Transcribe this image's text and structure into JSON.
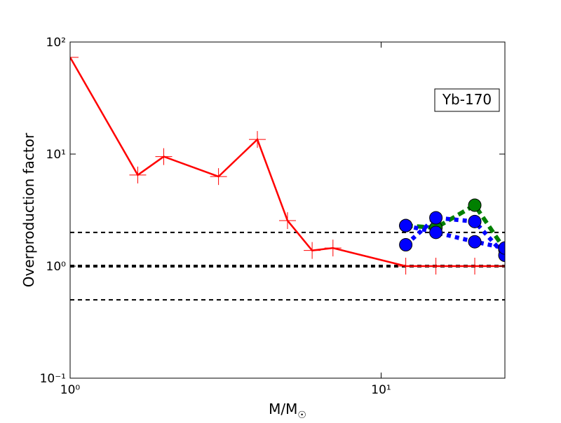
{
  "chart_data": {
    "type": "line",
    "xlabel": "M/M",
    "xlabel_sub": "☉",
    "ylabel": "Overproduction factor",
    "annotation": "Yb-170",
    "xscale": "log",
    "yscale": "log",
    "xlim": [
      1,
      25
    ],
    "ylim": [
      0.1,
      100
    ],
    "xticks": [
      {
        "value": 1,
        "label": "10⁰"
      },
      {
        "value": 10,
        "label": "10¹"
      }
    ],
    "yticks": [
      {
        "value": 0.1,
        "label": "10⁻¹"
      },
      {
        "value": 1,
        "label": "10⁰"
      },
      {
        "value": 10,
        "label": "10¹"
      },
      {
        "value": 100,
        "label": "10²"
      }
    ],
    "hlines": [
      2,
      1,
      0.5
    ],
    "series": [
      {
        "color": "#ff0000",
        "style": "solid",
        "marker": "plus",
        "x": [
          1,
          1.65,
          2,
          3,
          4,
          5,
          6,
          7,
          12,
          15,
          20,
          25
        ],
        "values": [
          73,
          6.5,
          9.5,
          6.3,
          13.5,
          2.55,
          1.38,
          1.45,
          1.0,
          1.0,
          1.0,
          1.0
        ]
      },
      {
        "color": "#008000",
        "style": "dashed",
        "marker": "circle",
        "x": [
          12,
          15,
          20,
          25
        ],
        "values": [
          2.3,
          2.2,
          3.5,
          1.4
        ]
      },
      {
        "color": "#0000ff",
        "style": "dotted",
        "marker": "circle",
        "x": [
          12,
          15,
          20,
          25
        ],
        "values": [
          1.55,
          2.7,
          2.5,
          1.25
        ]
      },
      {
        "color": "#0000ff",
        "style": "dotted",
        "marker": "circle",
        "x": [
          12,
          15,
          20,
          25
        ],
        "values": [
          2.3,
          2.0,
          1.65,
          1.45
        ]
      }
    ]
  }
}
